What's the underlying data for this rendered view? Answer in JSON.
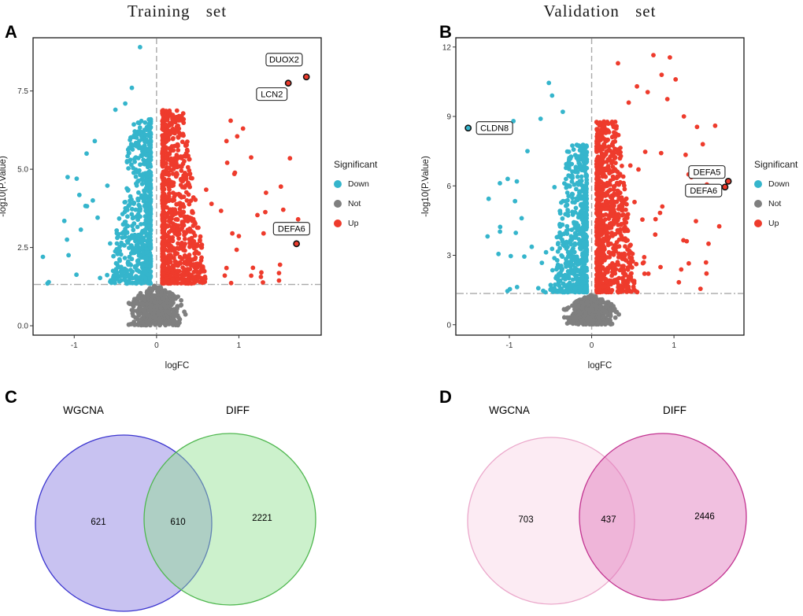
{
  "figure": {
    "background": "#ffffff"
  },
  "chart_data": [
    {
      "id": "training-volcano",
      "type": "scatter",
      "variant": "volcano",
      "panel_label": "A",
      "title": "Training set",
      "xlabel": "logFC",
      "ylabel": "-log10(P.Value)",
      "xlim": [
        -1.5,
        2.0
      ],
      "ylim": [
        -0.3,
        9.2
      ],
      "xticks": [
        -1,
        0,
        1
      ],
      "xtick_labels": [
        "-1",
        "0",
        "1"
      ],
      "yticks": [
        0,
        2.5,
        5,
        7.5
      ],
      "ytick_labels": [
        "0.0",
        "2.5",
        "5.0",
        "7.5"
      ],
      "vline_x": 0,
      "hline_y": 1.32,
      "grid": false,
      "colors": {
        "Down": "#35b5cc",
        "Not": "#7f7f7f",
        "Up": "#ee3b2c"
      },
      "legend": {
        "title": "Significant",
        "position": "right",
        "items": [
          {
            "label": "Down",
            "color": "#35b5cc"
          },
          {
            "label": "Not",
            "color": "#7f7f7f"
          },
          {
            "label": "Up",
            "color": "#ee3b2c"
          }
        ]
      },
      "labeled_points": [
        {
          "gene": "DUOX2",
          "x": 1.82,
          "y": 7.95,
          "lx": 1.55,
          "ly": 8.5,
          "group": "Up"
        },
        {
          "gene": "LCN2",
          "x": 1.6,
          "y": 7.75,
          "lx": 1.4,
          "ly": 7.4,
          "group": "Up"
        },
        {
          "gene": "DEFA6",
          "x": 1.7,
          "y": 2.62,
          "lx": 1.64,
          "ly": 3.1,
          "group": "Up"
        }
      ],
      "point_cloud": {
        "seed": 11,
        "not": {
          "n": 500,
          "x_sd": 0.17,
          "x_clip": 0.8,
          "y_max": 1.32
        },
        "down": {
          "n": 650,
          "x_min": 0.07,
          "x_spread": 0.5,
          "x_pow": 2.1,
          "x_max": 1.35,
          "y_min": 1.35,
          "y_top": 6.6,
          "y_pow": 1.55,
          "taper": 0.55,
          "n_tail": 25,
          "tail_y_top": 4.8,
          "outliers": [
            [
              -0.2,
              8.9
            ],
            [
              -0.3,
              7.6
            ],
            [
              -0.38,
              7.1
            ],
            [
              -0.5,
              6.9
            ],
            [
              -1.38,
              2.2
            ],
            [
              -1.08,
              4.75
            ],
            [
              -0.97,
              4.7
            ],
            [
              -1.12,
              3.35
            ],
            [
              -0.85,
              5.5
            ],
            [
              -0.75,
              5.9
            ]
          ]
        },
        "up": {
          "n": 850,
          "x_min": 0.07,
          "x_spread": 0.55,
          "x_pow": 2.1,
          "x_max": 1.55,
          "y_min": 1.35,
          "y_top": 6.9,
          "y_pow": 1.55,
          "taper": 0.55,
          "n_tail": 30,
          "tail_y_top": 5.4,
          "outliers": [
            [
              1.62,
              5.35
            ],
            [
              1.05,
              6.3
            ],
            [
              0.98,
              6.05
            ],
            [
              0.9,
              6.55
            ],
            [
              1.33,
              4.25
            ],
            [
              1.72,
              3.4
            ],
            [
              1.3,
              2.95
            ],
            [
              1.5,
              1.95
            ],
            [
              1.15,
              1.6
            ],
            [
              0.85,
              5.9
            ]
          ]
        }
      }
    },
    {
      "id": "validation-volcano",
      "type": "scatter",
      "variant": "volcano",
      "panel_label": "B",
      "title": "Validation set",
      "xlabel": "logFC",
      "ylabel": "-log10(P.Value)",
      "xlim": [
        -1.65,
        1.85
      ],
      "ylim": [
        -0.45,
        12.4
      ],
      "xticks": [
        -1,
        0,
        1
      ],
      "xtick_labels": [
        "-1",
        "0",
        "1"
      ],
      "yticks": [
        0,
        3,
        6,
        9,
        12
      ],
      "ytick_labels": [
        "0",
        "3",
        "6",
        "9",
        "12"
      ],
      "vline_x": 0,
      "hline_y": 1.35,
      "grid": false,
      "colors": {
        "Down": "#35b5cc",
        "Not": "#7f7f7f",
        "Up": "#ee3b2c"
      },
      "legend": {
        "title": "Significant",
        "position": "right",
        "items": [
          {
            "label": "Down",
            "color": "#35b5cc"
          },
          {
            "label": "Not",
            "color": "#7f7f7f"
          },
          {
            "label": "Up",
            "color": "#ee3b2c"
          }
        ]
      },
      "labeled_points": [
        {
          "gene": "CLDN8",
          "x": -1.5,
          "y": 8.5,
          "lx": -1.18,
          "ly": 8.5,
          "group": "Down"
        },
        {
          "gene": "DEFA5",
          "x": 1.66,
          "y": 6.2,
          "lx": 1.4,
          "ly": 6.6,
          "group": "Up"
        },
        {
          "gene": "DEFA6",
          "x": 1.62,
          "y": 5.95,
          "lx": 1.36,
          "ly": 5.8,
          "group": "Up"
        }
      ],
      "point_cloud": {
        "seed": 23,
        "not": {
          "n": 450,
          "x_sd": 0.16,
          "x_clip": 0.75,
          "y_max": 1.3
        },
        "down": {
          "n": 600,
          "x_min": 0.06,
          "x_spread": 0.45,
          "x_pow": 2.0,
          "x_max": 1.3,
          "y_min": 1.4,
          "y_top": 7.8,
          "y_pow": 1.5,
          "taper": 0.5,
          "n_tail": 25,
          "tail_y_top": 6.5,
          "outliers": [
            [
              -0.52,
              10.45
            ],
            [
              -0.48,
              9.9
            ],
            [
              -1.18,
              8.6
            ],
            [
              -0.95,
              8.8
            ],
            [
              -0.78,
              7.5
            ],
            [
              -1.02,
              6.3
            ],
            [
              -0.35,
              9.2
            ],
            [
              -0.62,
              8.9
            ]
          ]
        },
        "up": {
          "n": 850,
          "x_min": 0.06,
          "x_spread": 0.5,
          "x_pow": 2.0,
          "x_max": 1.45,
          "y_min": 1.4,
          "y_top": 8.8,
          "y_pow": 1.5,
          "taper": 0.5,
          "n_tail": 35,
          "tail_y_top": 7.5,
          "outliers": [
            [
              0.32,
              11.3
            ],
            [
              0.75,
              11.65
            ],
            [
              0.95,
              11.55
            ],
            [
              1.02,
              10.6
            ],
            [
              0.55,
              10.3
            ],
            [
              0.68,
              10.05
            ],
            [
              1.12,
              9.0
            ],
            [
              1.28,
              8.55
            ],
            [
              0.92,
              9.75
            ],
            [
              1.55,
              4.25
            ],
            [
              1.42,
              3.5
            ],
            [
              1.18,
              2.65
            ],
            [
              0.85,
              10.8
            ],
            [
              0.45,
              9.6
            ],
            [
              1.35,
              7.8
            ],
            [
              1.5,
              8.6
            ]
          ]
        }
      }
    },
    {
      "id": "training-venn",
      "type": "venn",
      "panel_label": "C",
      "left": {
        "label": "WGCNA",
        "only": 621
      },
      "right": {
        "label": "DIFF",
        "only": 2221
      },
      "intersection": 610,
      "colors": {
        "left_fill": "#8577e0",
        "left_opacity": 0.45,
        "left_stroke": "#3b35cf",
        "right_fill": "#8fe08f",
        "right_opacity": 0.45,
        "right_stroke": "#4fb74f"
      }
    },
    {
      "id": "validation-venn",
      "type": "venn",
      "panel_label": "D",
      "left": {
        "label": "WGCNA",
        "only": 703
      },
      "right": {
        "label": "DIFF",
        "only": 2446
      },
      "intersection": 437,
      "colors": {
        "left_fill": "#f6c6de",
        "left_opacity": 0.35,
        "left_stroke": "#eba8cb",
        "right_fill": "#e074ba",
        "right_opacity": 0.45,
        "right_stroke": "#c23390"
      }
    }
  ]
}
